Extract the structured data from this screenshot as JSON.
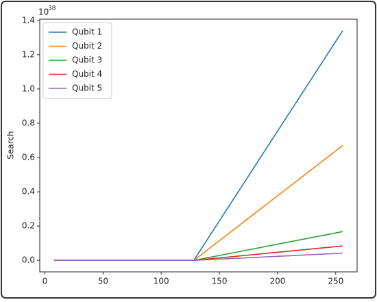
{
  "chart_data": {
    "type": "line",
    "y_label": "Search",
    "y_offset_base": "10",
    "y_offset_exponent": "38",
    "x": [
      8,
      16,
      32,
      64,
      128,
      256
    ],
    "series": [
      {
        "name": "Qubit 1",
        "color": "#1f77b4",
        "values": [
          0,
          0,
          0,
          0,
          0,
          1.34
        ]
      },
      {
        "name": "Qubit 2",
        "color": "#ff7f0e",
        "values": [
          0,
          0,
          0,
          0,
          0,
          0.67
        ]
      },
      {
        "name": "Qubit 3",
        "color": "#2ca02c",
        "values": [
          0,
          0,
          0,
          0,
          0,
          0.168
        ]
      },
      {
        "name": "Qubit 4",
        "color": "#d62728",
        "values": [
          0,
          0,
          0,
          0,
          0,
          0.084
        ]
      },
      {
        "name": "Qubit 5",
        "color": "#9467bd",
        "values": [
          0,
          0,
          0,
          0,
          0,
          0.042
        ]
      }
    ],
    "xlim": [
      -4.4,
      268.4
    ],
    "xticks": [
      0,
      50,
      100,
      150,
      200,
      250
    ],
    "ylim": [
      -0.067,
      1.407
    ],
    "yticks": [
      {
        "value": 0,
        "label": "0.0"
      },
      0.2,
      0.4,
      0.6,
      0.8,
      {
        "value": 1,
        "label": "1.0"
      },
      1.2,
      1.4
    ],
    "legend": "upper left"
  }
}
